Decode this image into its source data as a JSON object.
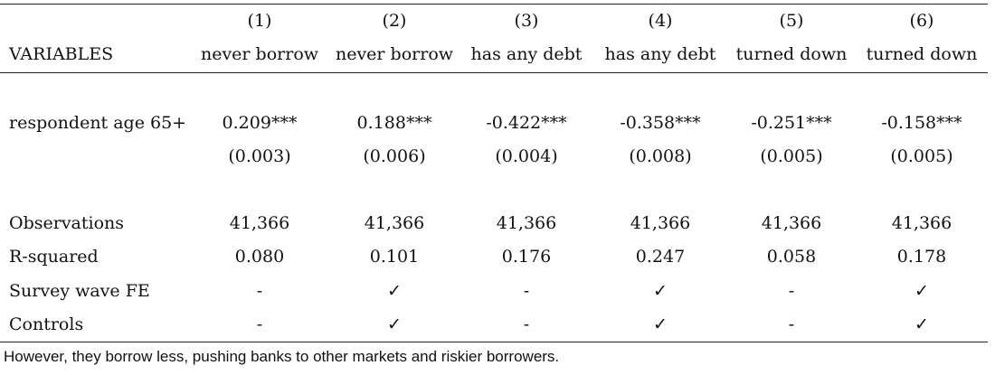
{
  "table": {
    "header_numbers": [
      "(1)",
      "(2)",
      "(3)",
      "(4)",
      "(5)",
      "(6)"
    ],
    "variables_label": "VARIABLES",
    "columns": [
      "never borrow",
      "never borrow",
      "has any debt",
      "has any debt",
      "turned down",
      "turned down"
    ],
    "rows": [
      {
        "label": "respondent age 65+",
        "values": [
          "0.209***",
          "0.188***",
          "-0.422***",
          "-0.358***",
          "-0.251***",
          "-0.158***"
        ]
      },
      {
        "label": "",
        "values": [
          "(0.003)",
          "(0.006)",
          "(0.004)",
          "(0.008)",
          "(0.005)",
          "(0.005)"
        ]
      },
      {
        "label": "Observations",
        "values": [
          "41,366",
          "41,366",
          "41,366",
          "41,366",
          "41,366",
          "41,366"
        ]
      },
      {
        "label": "R-squared",
        "values": [
          "0.080",
          "0.101",
          "0.176",
          "0.247",
          "0.058",
          "0.178"
        ]
      },
      {
        "label": "Survey wave FE",
        "values": [
          "-",
          "✓",
          "-",
          "✓",
          "-",
          "✓"
        ]
      },
      {
        "label": "Controls",
        "values": [
          "-",
          "✓",
          "-",
          "✓",
          "-",
          "✓"
        ]
      }
    ]
  },
  "caption": "However, they borrow less, pushing banks to other markets and riskier borrowers."
}
